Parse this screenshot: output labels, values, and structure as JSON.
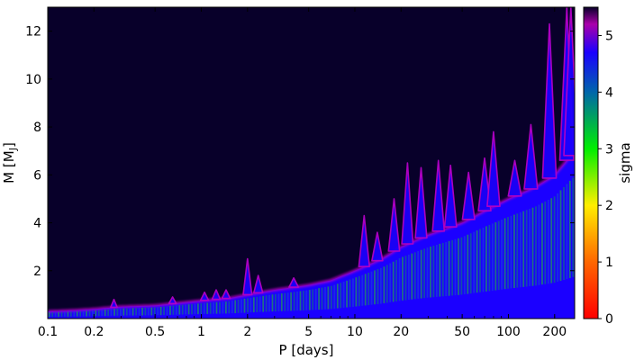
{
  "chart_data": {
    "type": "heatmap",
    "xlabel": "P [days]",
    "ylabel": "M [M",
    "ylabel_subscript": "J",
    "ylabel_suffix": "]",
    "x_scale": "log",
    "xlim": [
      0.1,
      270
    ],
    "ylim": [
      0,
      13
    ],
    "x_ticks": [
      {
        "value": 0.1,
        "label": "0.1"
      },
      {
        "value": 0.2,
        "label": "0.2"
      },
      {
        "value": 0.5,
        "label": "0.5"
      },
      {
        "value": 1,
        "label": "1"
      },
      {
        "value": 2,
        "label": "2"
      },
      {
        "value": 5,
        "label": "5"
      },
      {
        "value": 10,
        "label": "10"
      },
      {
        "value": 20,
        "label": "20"
      },
      {
        "value": 50,
        "label": "50"
      },
      {
        "value": 100,
        "label": "100"
      },
      {
        "value": 200,
        "label": "200"
      }
    ],
    "y_ticks": [
      {
        "value": 2,
        "label": "2"
      },
      {
        "value": 4,
        "label": "4"
      },
      {
        "value": 6,
        "label": "6"
      },
      {
        "value": 8,
        "label": "8"
      },
      {
        "value": 10,
        "label": "10"
      },
      {
        "value": 12,
        "label": "12"
      }
    ],
    "colorbar": {
      "label": "sigma",
      "range": [
        0,
        5.5
      ],
      "ticks": [
        {
          "value": 0,
          "label": "0"
        },
        {
          "value": 1,
          "label": "1"
        },
        {
          "value": 2,
          "label": "2"
        },
        {
          "value": 3,
          "label": "3"
        },
        {
          "value": 4,
          "label": "4"
        },
        {
          "value": 5,
          "label": "5"
        }
      ],
      "colormap_stops": [
        {
          "value": 0.0,
          "color": "#ff0000"
        },
        {
          "value": 1.0,
          "color": "#ff6600"
        },
        {
          "value": 2.0,
          "color": "#ffee00"
        },
        {
          "value": 3.0,
          "color": "#00ee00"
        },
        {
          "value": 4.0,
          "color": "#0066aa"
        },
        {
          "value": 4.7,
          "color": "#1b00ff"
        },
        {
          "value": 5.2,
          "color": "#aa00aa"
        },
        {
          "value": 5.5,
          "color": "#08002a"
        }
      ]
    },
    "background_color": "#08002a",
    "detection_boundary": {
      "description_only_for_rendering": false,
      "period": [
        0.1,
        0.15,
        0.2,
        0.3,
        0.5,
        0.7,
        1,
        1.5,
        2,
        3,
        5,
        7,
        10,
        15,
        20,
        30,
        50,
        70,
        100,
        150,
        200,
        270
      ],
      "mass": [
        0.3,
        0.35,
        0.4,
        0.5,
        0.55,
        0.65,
        0.75,
        0.85,
        1.0,
        1.2,
        1.4,
        1.6,
        2.0,
        2.5,
        3.0,
        3.5,
        4.0,
        4.5,
        5.0,
        5.5,
        6.0,
        7.0
      ]
    },
    "peaks": [
      {
        "period": 0.27,
        "mass": 0.8
      },
      {
        "period": 0.65,
        "mass": 0.9
      },
      {
        "period": 1.05,
        "mass": 1.1
      },
      {
        "period": 1.25,
        "mass": 1.2
      },
      {
        "period": 1.45,
        "mass": 1.2
      },
      {
        "period": 2.0,
        "mass": 2.5
      },
      {
        "period": 2.35,
        "mass": 1.8
      },
      {
        "period": 4.0,
        "mass": 1.7
      },
      {
        "period": 11.5,
        "mass": 4.3
      },
      {
        "period": 14,
        "mass": 3.6
      },
      {
        "period": 18,
        "mass": 5.0
      },
      {
        "period": 22,
        "mass": 6.5
      },
      {
        "period": 27,
        "mass": 6.3
      },
      {
        "period": 35,
        "mass": 6.6
      },
      {
        "period": 42,
        "mass": 6.4
      },
      {
        "period": 55,
        "mass": 6.1
      },
      {
        "period": 70,
        "mass": 6.7
      },
      {
        "period": 80,
        "mass": 7.8
      },
      {
        "period": 110,
        "mass": 6.6
      },
      {
        "period": 140,
        "mass": 8.1
      },
      {
        "period": 185,
        "mass": 12.3
      },
      {
        "period": 240,
        "mass": 13.0
      },
      {
        "period": 255,
        "mass": 13.0
      }
    ]
  }
}
